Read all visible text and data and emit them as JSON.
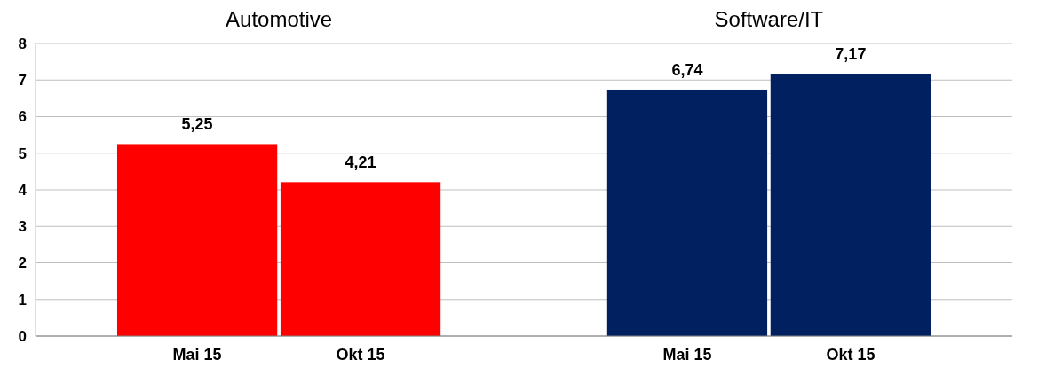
{
  "chart_data": {
    "type": "bar",
    "categories": [
      "Mai 15",
      "Okt 15",
      null,
      "Mai 15",
      "Okt 15"
    ],
    "values": [
      5.25,
      4.21,
      null,
      6.74,
      7.17
    ],
    "colors": [
      "#ff0000",
      "#ff0000",
      null,
      "#002060",
      "#002060"
    ],
    "value_labels": [
      "5,25",
      "4,21",
      null,
      "6,74",
      "7,17"
    ],
    "annotations": [
      "Automotive",
      "Software/IT"
    ],
    "ylim": [
      0,
      8
    ],
    "yticks": [
      0,
      1,
      2,
      3,
      4,
      5,
      6,
      7,
      8
    ],
    "grid": "y"
  }
}
